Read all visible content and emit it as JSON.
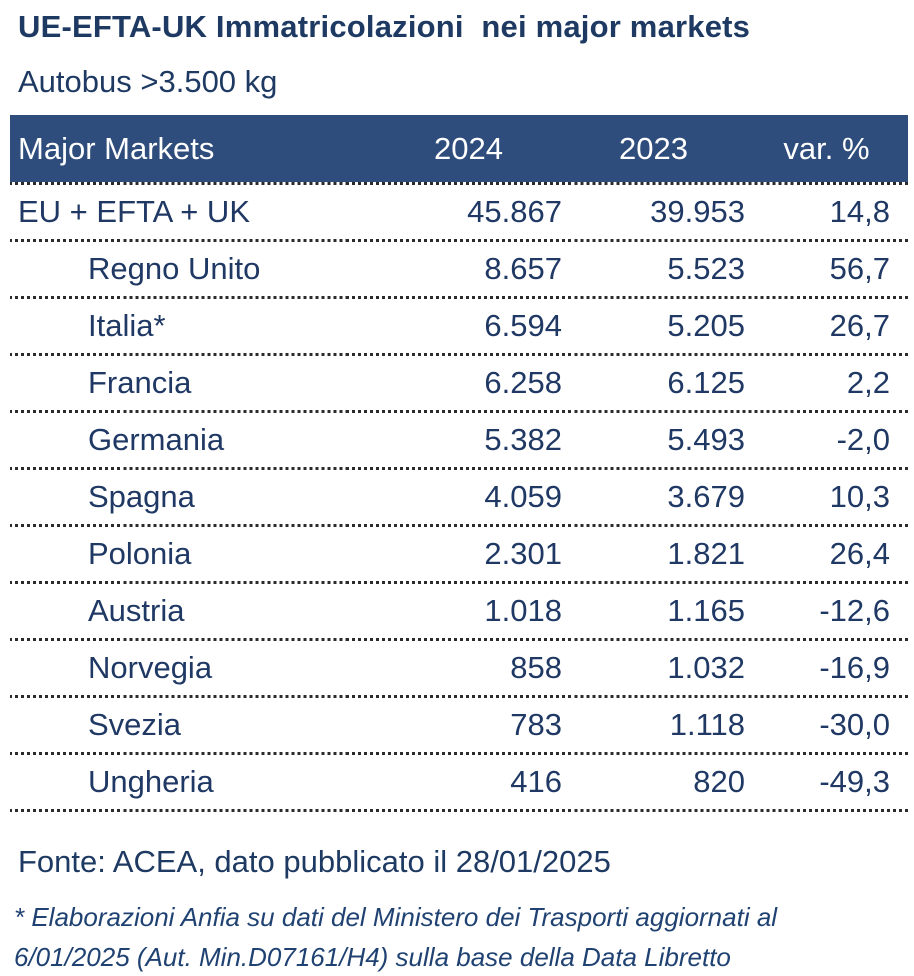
{
  "colors": {
    "header_bg": "#2F4D7C",
    "header_text": "#ffffff",
    "body_text": "#1F3864",
    "title_text": "#1E3A63",
    "separator": "#2b2b2b"
  },
  "chart_data": {
    "type": "table",
    "title": "UE-EFTA-UK Immatricolazioni  nei major markets",
    "subtitle": "Autobus >3.500 kg",
    "columns": [
      "Major Markets",
      "2024",
      "2023",
      "var. %"
    ],
    "rows": [
      {
        "label": "EU + EFTA + UK",
        "v2024": "45.867",
        "v2023": "39.953",
        "var_pct": "14,8",
        "indent": false
      },
      {
        "label": "Regno Unito",
        "v2024": "8.657",
        "v2023": "5.523",
        "var_pct": "56,7",
        "indent": true
      },
      {
        "label": "Italia*",
        "v2024": "6.594",
        "v2023": "5.205",
        "var_pct": "26,7",
        "indent": true
      },
      {
        "label": "Francia",
        "v2024": "6.258",
        "v2023": "6.125",
        "var_pct": "2,2",
        "indent": true
      },
      {
        "label": "Germania",
        "v2024": "5.382",
        "v2023": "5.493",
        "var_pct": "-2,0",
        "indent": true
      },
      {
        "label": "Spagna",
        "v2024": "4.059",
        "v2023": "3.679",
        "var_pct": "10,3",
        "indent": true
      },
      {
        "label": "Polonia",
        "v2024": "2.301",
        "v2023": "1.821",
        "var_pct": "26,4",
        "indent": true
      },
      {
        "label": "Austria",
        "v2024": "1.018",
        "v2023": "1.165",
        "var_pct": "-12,6",
        "indent": true
      },
      {
        "label": "Norvegia",
        "v2024": "858",
        "v2023": "1.032",
        "var_pct": "-16,9",
        "indent": true
      },
      {
        "label": "Svezia",
        "v2024": "783",
        "v2023": "1.118",
        "var_pct": "-30,0",
        "indent": true
      },
      {
        "label": "Ungheria",
        "v2024": "416",
        "v2023": "820",
        "var_pct": "-49,3",
        "indent": true
      }
    ],
    "source": "Fonte: ACEA, dato pubblicato il 28/01/2025",
    "footnote": [
      "* Elaborazioni Anfia su dati del Ministero dei Trasporti aggiornati al",
      "6/01/2025 (Aut. Min.D07161/H4) sulla base della Data Libretto"
    ]
  }
}
